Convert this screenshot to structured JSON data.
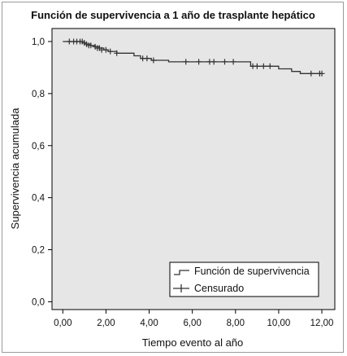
{
  "chart_data": {
    "type": "line",
    "title": "Función de supervivencia a 1 año de trasplante hepático",
    "xlabel": "Tiempo evento al año",
    "ylabel": "Supervivencia acumulada",
    "xlim": [
      -0.5,
      12.6
    ],
    "ylim": [
      -0.03,
      1.05
    ],
    "x_ticks": [
      0,
      2,
      4,
      6,
      8,
      10,
      12
    ],
    "x_tick_labels": [
      "0,00",
      "2,00",
      "4,00",
      "6,00",
      "8,00",
      "10,00",
      "12,00"
    ],
    "y_ticks": [
      0,
      0.2,
      0.4,
      0.6,
      0.8,
      1.0
    ],
    "y_tick_labels": [
      "0,0",
      "0,2",
      "0,4",
      "0,6",
      "0,8",
      "1,0"
    ],
    "grid": false,
    "legend_position": "bottom-right",
    "series": [
      {
        "name": "Función de supervivencia",
        "style": "step",
        "x": [
          0,
          0.9,
          1.1,
          1.3,
          1.5,
          1.7,
          1.9,
          2.1,
          2.5,
          3.3,
          3.6,
          4.1,
          4.9,
          8.7,
          10.0,
          10.6,
          11.0,
          12.0
        ],
        "y": [
          1.0,
          0.995,
          0.99,
          0.985,
          0.98,
          0.975,
          0.968,
          0.962,
          0.955,
          0.945,
          0.935,
          0.928,
          0.922,
          0.905,
          0.895,
          0.885,
          0.877,
          0.877
        ]
      },
      {
        "name": "Censurado",
        "style": "markers",
        "x": [
          0.3,
          0.5,
          0.65,
          0.8,
          0.9,
          1.0,
          1.1,
          1.2,
          1.3,
          1.5,
          1.6,
          1.7,
          1.8,
          2.0,
          2.2,
          2.5,
          3.7,
          3.9,
          4.2,
          5.7,
          6.3,
          6.8,
          7.0,
          7.5,
          7.9,
          8.8,
          9.0,
          9.3,
          9.6,
          11.5,
          11.9,
          12.0
        ],
        "y": [
          1.0,
          1.0,
          1.0,
          1.0,
          1.0,
          0.995,
          0.99,
          0.985,
          0.985,
          0.98,
          0.975,
          0.975,
          0.968,
          0.968,
          0.962,
          0.955,
          0.935,
          0.935,
          0.928,
          0.922,
          0.922,
          0.922,
          0.922,
          0.922,
          0.922,
          0.905,
          0.905,
          0.905,
          0.905,
          0.877,
          0.877,
          0.877
        ]
      }
    ]
  },
  "colors": {
    "plot_background": "#e6e6e6",
    "line": "#333333",
    "axis": "#000000"
  }
}
